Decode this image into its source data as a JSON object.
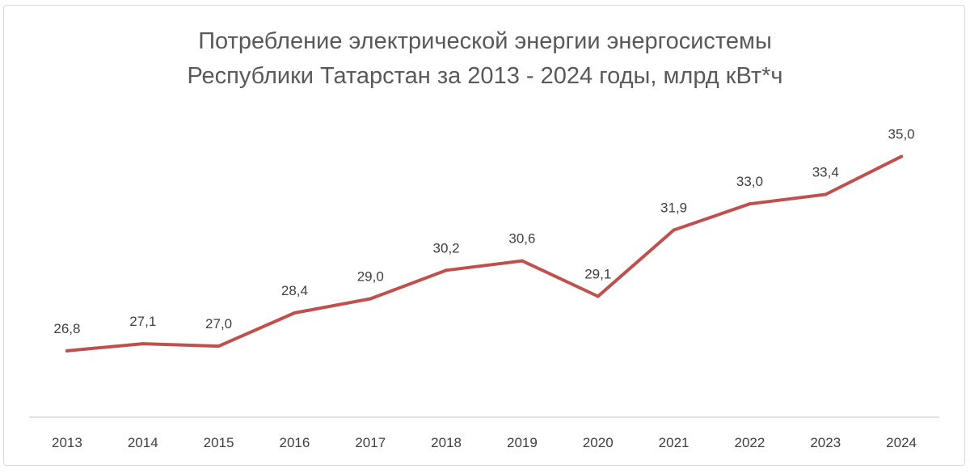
{
  "chart_data": {
    "type": "line",
    "title": "Потребление электрической энергии энергосистемы Республики Татарстан за 2013 - 2024 годы, млрд кВт*ч",
    "title_lines": [
      "Потребление электрической энергии энергосистемы",
      "Республики Татарстан за 2013 - 2024 годы, млрд кВт*ч"
    ],
    "categories": [
      "2013",
      "2014",
      "2015",
      "2016",
      "2017",
      "2018",
      "2019",
      "2020",
      "2021",
      "2022",
      "2023",
      "2024"
    ],
    "values": [
      26.8,
      27.1,
      27.0,
      28.4,
      29.0,
      30.2,
      30.6,
      29.1,
      31.9,
      33.0,
      33.4,
      35.0
    ],
    "data_labels": [
      "26,8",
      "27,1",
      "27,0",
      "28,4",
      "29,0",
      "30,2",
      "30,6",
      "29,1",
      "31,9",
      "33,0",
      "33,4",
      "35,0"
    ],
    "ylim": [
      24,
      37
    ],
    "xlabel": "",
    "ylabel": "",
    "grid": false,
    "legend": "none",
    "line_color": "#c0504d",
    "axis_color": "#d9d9d9",
    "text_color": "#404040"
  }
}
